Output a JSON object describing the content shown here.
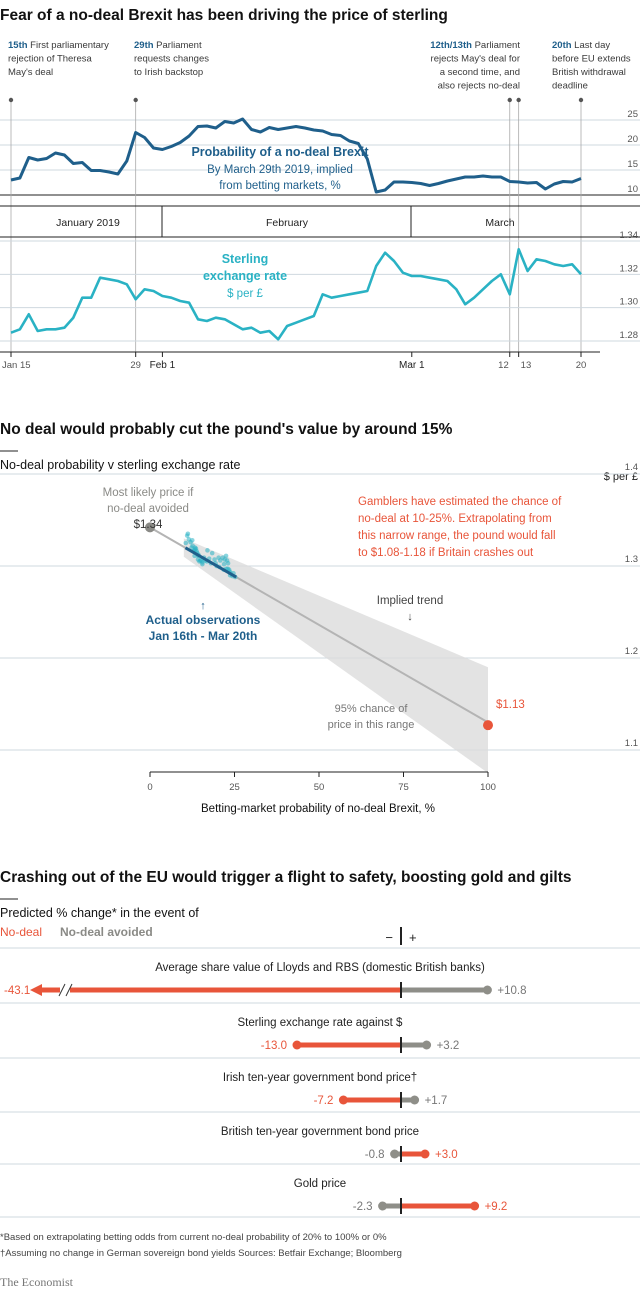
{
  "chart_data": [
    {
      "type": "line",
      "title": "Fear of a no-deal Brexit has been driving the price of sterling",
      "series": [
        {
          "name": "Probability of a no-deal Brexit",
          "x": [
            "2019-01-15",
            "2019-01-16",
            "2019-01-17",
            "2019-01-18",
            "2019-01-19",
            "2019-01-20",
            "2019-01-21",
            "2019-01-22",
            "2019-01-23",
            "2019-01-24",
            "2019-01-25",
            "2019-01-26",
            "2019-01-27",
            "2019-01-28",
            "2019-01-29",
            "2019-01-30",
            "2019-01-31",
            "2019-02-01",
            "2019-02-02",
            "2019-02-03",
            "2019-02-04",
            "2019-02-05",
            "2019-02-06",
            "2019-02-07",
            "2019-02-08",
            "2019-02-09",
            "2019-02-10",
            "2019-02-11",
            "2019-02-12",
            "2019-02-13",
            "2019-02-14",
            "2019-02-15",
            "2019-02-16",
            "2019-02-17",
            "2019-02-18",
            "2019-02-19",
            "2019-02-20",
            "2019-02-21",
            "2019-02-22",
            "2019-02-23",
            "2019-02-24",
            "2019-02-25",
            "2019-02-26",
            "2019-02-27",
            "2019-02-28",
            "2019-03-01",
            "2019-03-02",
            "2019-03-03",
            "2019-03-04",
            "2019-03-05",
            "2019-03-06",
            "2019-03-07",
            "2019-03-08",
            "2019-03-09",
            "2019-03-10",
            "2019-03-11",
            "2019-03-12",
            "2019-03-13",
            "2019-03-14",
            "2019-03-15",
            "2019-03-16",
            "2019-03-17",
            "2019-03-18",
            "2019-03-19",
            "2019-03-20"
          ],
          "values": [
            13,
            13.4,
            17.5,
            17,
            17.3,
            18.4,
            18,
            16.3,
            16.5,
            14.9,
            14.9,
            14.6,
            14.2,
            16.8,
            22.5,
            21.5,
            19.4,
            19.1,
            19.7,
            20.5,
            21.8,
            23.7,
            23.8,
            23.4,
            24.7,
            24.4,
            25.2,
            23.1,
            22.6,
            23.5,
            23.1,
            23.4,
            23.7,
            23.4,
            23,
            22.8,
            22.1,
            21.9,
            20.8,
            20.3,
            17.2,
            10.6,
            11,
            12.6,
            12.6,
            12.5,
            12.3,
            11.9,
            12.3,
            12.8,
            13.2,
            13.6,
            13.6,
            13.8,
            13.6,
            13.6,
            12.7,
            12.6,
            12.4,
            12.5,
            11.2,
            12.2,
            12.7,
            12.6,
            13.3
          ],
          "ylim": [
            10,
            25
          ],
          "yticks": [
            "10",
            "15",
            "20",
            "25"
          ]
        },
        {
          "name": "Sterling exchange rate",
          "x": [
            "2019-01-15",
            "2019-01-16",
            "2019-01-17",
            "2019-01-18",
            "2019-01-19",
            "2019-01-20",
            "2019-01-21",
            "2019-01-22",
            "2019-01-23",
            "2019-01-24",
            "2019-01-25",
            "2019-01-26",
            "2019-01-27",
            "2019-01-28",
            "2019-01-29",
            "2019-01-30",
            "2019-01-31",
            "2019-02-01",
            "2019-02-02",
            "2019-02-03",
            "2019-02-04",
            "2019-02-05",
            "2019-02-06",
            "2019-02-07",
            "2019-02-08",
            "2019-02-09",
            "2019-02-10",
            "2019-02-11",
            "2019-02-12",
            "2019-02-13",
            "2019-02-14",
            "2019-02-15",
            "2019-02-16",
            "2019-02-17",
            "2019-02-18",
            "2019-02-19",
            "2019-02-20",
            "2019-02-21",
            "2019-02-22",
            "2019-02-23",
            "2019-02-24",
            "2019-02-25",
            "2019-02-26",
            "2019-02-27",
            "2019-02-28",
            "2019-03-01",
            "2019-03-02",
            "2019-03-03",
            "2019-03-04",
            "2019-03-05",
            "2019-03-06",
            "2019-03-07",
            "2019-03-08",
            "2019-03-09",
            "2019-03-10",
            "2019-03-11",
            "2019-03-12",
            "2019-03-13",
            "2019-03-14",
            "2019-03-15",
            "2019-03-16",
            "2019-03-17",
            "2019-03-18",
            "2019-03-19",
            "2019-03-20"
          ],
          "values": [
            1.285,
            1.287,
            1.296,
            1.286,
            1.287,
            1.287,
            1.288,
            1.294,
            1.306,
            1.306,
            1.318,
            1.317,
            1.316,
            1.314,
            1.305,
            1.311,
            1.31,
            1.307,
            1.306,
            1.304,
            1.303,
            1.293,
            1.292,
            1.294,
            1.293,
            1.29,
            1.287,
            1.288,
            1.285,
            1.286,
            1.281,
            1.289,
            1.291,
            1.293,
            1.295,
            1.308,
            1.306,
            1.307,
            1.308,
            1.309,
            1.31,
            1.325,
            1.333,
            1.328,
            1.321,
            1.319,
            1.319,
            1.318,
            1.317,
            1.316,
            1.311,
            1.302,
            1.306,
            1.311,
            1.316,
            1.32,
            1.308,
            1.335,
            1.322,
            1.329,
            1.328,
            1.326,
            1.325,
            1.326,
            1.32
          ],
          "ylim": [
            1.28,
            1.34
          ],
          "yticks": [
            "1.28",
            "1.30",
            "1.32",
            "1.34"
          ]
        }
      ],
      "x_tick_labels": [
        "Jan 15",
        "29",
        "Feb 1",
        "Mar 1",
        "12",
        "13",
        "20"
      ],
      "month_labels": [
        "January 2019",
        "February",
        "March"
      ],
      "events": [
        {
          "date": "15th",
          "text": [
            "First parliamentary",
            "rejection of Theresa",
            "May's deal"
          ]
        },
        {
          "date": "29th",
          "text": [
            "Parliament",
            "requests changes",
            "to Irish backstop"
          ]
        },
        {
          "date": "12th/13th",
          "text": [
            "Parliament",
            "rejects May's deal for",
            "a second time, and",
            "also rejects no-deal"
          ]
        },
        {
          "date": "20th",
          "text": [
            "Last day",
            "before EU extends",
            "British withdrawal",
            "deadline"
          ]
        }
      ],
      "labels": {
        "prob_title": "Probability of a no-deal Brexit",
        "prob_sub1": "By March 29th 2019, implied",
        "prob_sub2": "from betting markets, %",
        "fx_title1": "Sterling",
        "fx_title2": "exchange rate",
        "fx_sub": "$ per £"
      }
    },
    {
      "type": "scatter",
      "title": "No deal would probably cut the pound's value by around 15%",
      "subtitle": "No-deal probability v sterling exchange rate",
      "xlabel": "Betting-market probability of no-deal Brexit, %",
      "ylabel": "$ per £",
      "xlim": [
        0,
        100
      ],
      "ylim": [
        1.1,
        1.4
      ],
      "xticks": [
        "0",
        "25",
        "50",
        "75",
        "100"
      ],
      "yticks": [
        "1.1",
        "1.2",
        "1.3",
        "1.4"
      ],
      "trend": {
        "x": [
          0,
          100
        ],
        "y": [
          1.342,
          1.13
        ]
      },
      "band": {
        "x": [
          10,
          100
        ],
        "upper": [
          1.33,
          1.19
        ],
        "lower": [
          1.31,
          1.075
        ]
      },
      "observations": {
        "x": [
          11,
          11.5,
          12,
          12.3,
          12.6,
          12.8,
          13,
          13.2,
          13.4,
          13.6,
          13.8,
          14,
          14.2,
          14.4,
          14.6,
          14.9,
          15.2,
          15.5,
          16,
          16.3,
          16.8,
          17,
          17.5,
          18,
          18.4,
          19.1,
          19.4,
          19.7,
          20.3,
          20.5,
          20.8,
          21.5,
          21.8,
          21.9,
          22.1,
          22.5,
          22.6,
          22.8,
          23,
          23.1,
          23.4,
          23.5,
          23.7,
          23.8,
          24.4,
          24.7,
          25.2,
          10.6,
          11.2,
          12.5,
          13.3,
          14.2,
          15.5
        ],
        "y": [
          1.333,
          1.329,
          1.326,
          1.32,
          1.322,
          1.316,
          1.317,
          1.311,
          1.318,
          1.319,
          1.316,
          1.314,
          1.307,
          1.312,
          1.305,
          1.306,
          1.306,
          1.302,
          1.309,
          1.306,
          1.305,
          1.317,
          1.308,
          1.303,
          1.314,
          1.307,
          1.303,
          1.3,
          1.309,
          1.299,
          1.306,
          1.309,
          1.296,
          1.302,
          1.307,
          1.311,
          1.297,
          1.306,
          1.297,
          1.303,
          1.296,
          1.294,
          1.29,
          1.293,
          1.289,
          1.292,
          1.288,
          1.325,
          1.335,
          1.328,
          1.32,
          1.311,
          1.304
        ]
      },
      "points": [
        {
          "label": "$1.34",
          "x": 0,
          "y": 1.342
        },
        {
          "label": "$1.13",
          "x": 100,
          "y": 1.127
        }
      ],
      "annotations": {
        "likely_1": "Most likely price if",
        "likely_2": "no-deal avoided",
        "likely_value": "$1.34",
        "gamblers": [
          "Gamblers have estimated the chance of",
          "no-deal at 10-25%. Extrapolating from",
          "this narrow range, the pound would fall",
          "to $1.08-1.18 if Britain crashes out"
        ],
        "trend_label": "Implied trend",
        "actual_1": "Actual observations",
        "actual_2": "Jan 16th - Mar 20th",
        "band_1": "95% chance of",
        "band_2": "price in this range",
        "end_value": "$1.13"
      }
    },
    {
      "type": "bar",
      "title": "Crashing out of the EU would trigger a flight to safety, boosting gold and gilts",
      "subtitle": "Predicted % change* in the event of",
      "legend": [
        "No-deal",
        "No-deal avoided"
      ],
      "sign_labels": {
        "minus": "−",
        "plus": "+"
      },
      "rows": [
        {
          "label": "Average share value of Lloyds and RBS (domestic British banks)",
          "no_deal": -43.1,
          "avoided": 10.8,
          "no_deal_text": "-43.1",
          "avoided_text": "+10.8"
        },
        {
          "label": "Sterling exchange rate against $",
          "no_deal": -13.0,
          "avoided": 3.2,
          "no_deal_text": "-13.0",
          "avoided_text": "+3.2"
        },
        {
          "label": "Irish ten-year government bond price†",
          "no_deal": -7.2,
          "avoided": 1.7,
          "no_deal_text": "-7.2",
          "avoided_text": "+1.7"
        },
        {
          "label": "British ten-year government bond price",
          "no_deal": 3.0,
          "avoided": -0.8,
          "no_deal_text": "+3.0",
          "avoided_text": "-0.8"
        },
        {
          "label": "Gold price",
          "no_deal": 9.2,
          "avoided": -2.3,
          "no_deal_text": "+9.2",
          "avoided_text": "-2.3"
        }
      ]
    }
  ],
  "footnotes": [
    "*Based on extrapolating betting odds from current no-deal probability of 20% to 100% or 0%",
    "†Assuming no change in German sovereign bond yields    Sources: Betfair Exchange; Bloomberg"
  ],
  "brand": "The Economist",
  "colors": {
    "blue": "#1f5f8b",
    "teal": "#2ab2c4",
    "red": "#e8553a",
    "grey": "#8e8e88"
  }
}
